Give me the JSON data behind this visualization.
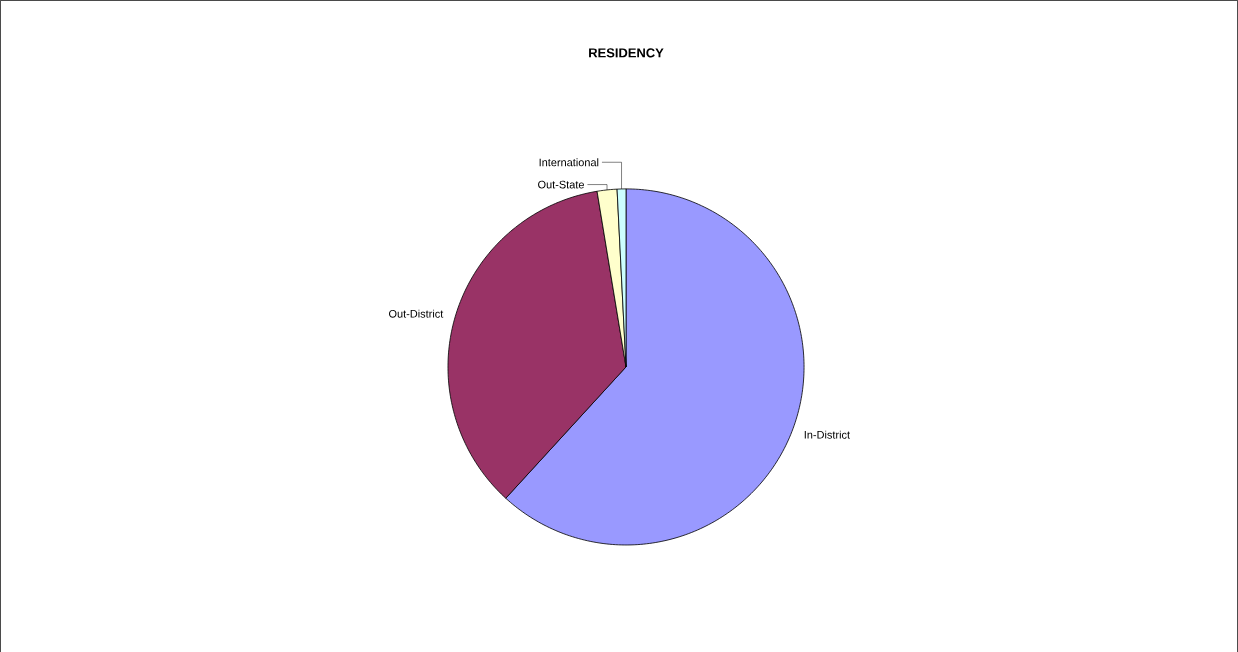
{
  "chart_data": {
    "type": "pie",
    "title": "RESIDENCY",
    "categories": [
      "In-District",
      "Out-District",
      "Out-State",
      "International"
    ],
    "values": [
      61.8,
      35.6,
      1.8,
      0.8
    ],
    "colors": [
      "#9999ff",
      "#993366",
      "#ffffcc",
      "#ccffff"
    ]
  }
}
